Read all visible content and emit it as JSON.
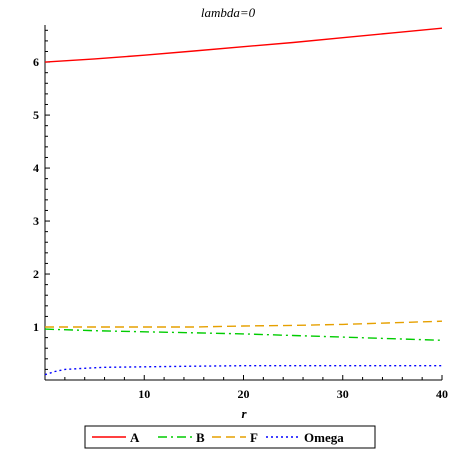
{
  "chart_data": {
    "type": "line",
    "title": "lambda=0",
    "xlabel": "r",
    "ylabel": "",
    "xlim": [
      0,
      40
    ],
    "ylim": [
      0,
      6.7
    ],
    "x_ticks": [
      10,
      20,
      30,
      40
    ],
    "y_ticks": [
      1,
      2,
      3,
      4,
      5,
      6
    ],
    "legend_position": "bottom",
    "grid": false,
    "series": [
      {
        "name": "A",
        "color": "#ff0000",
        "dash": "solid",
        "x": [
          0,
          5,
          10,
          15,
          20,
          25,
          30,
          35,
          40
        ],
        "y": [
          6.0,
          6.06,
          6.13,
          6.21,
          6.29,
          6.37,
          6.46,
          6.55,
          6.64
        ]
      },
      {
        "name": "B",
        "color": "#00cc00",
        "dash": "dashdot",
        "x": [
          0,
          5,
          10,
          15,
          20,
          25,
          30,
          35,
          40
        ],
        "y": [
          0.96,
          0.93,
          0.91,
          0.89,
          0.87,
          0.84,
          0.81,
          0.78,
          0.75
        ]
      },
      {
        "name": "F",
        "color": "#e6a000",
        "dash": "dash",
        "x": [
          0,
          5,
          10,
          15,
          20,
          25,
          30,
          35,
          40
        ],
        "y": [
          1.0,
          1.0,
          1.0,
          1.0,
          1.02,
          1.03,
          1.05,
          1.08,
          1.11
        ]
      },
      {
        "name": "Omega",
        "color": "#0000ff",
        "dash": "dot",
        "x": [
          0,
          1,
          2,
          4,
          6,
          10,
          15,
          20,
          25,
          30,
          35,
          40
        ],
        "y": [
          0.1,
          0.16,
          0.2,
          0.22,
          0.24,
          0.25,
          0.26,
          0.27,
          0.27,
          0.27,
          0.27,
          0.27
        ]
      }
    ]
  }
}
